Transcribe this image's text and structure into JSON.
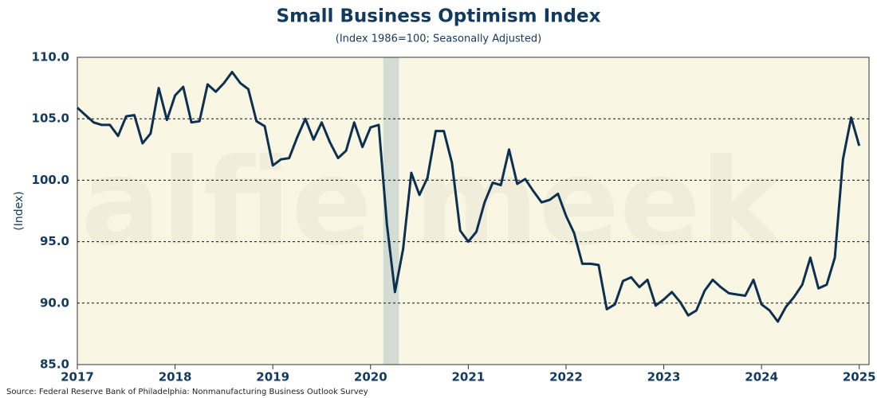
{
  "chart_data": {
    "type": "line",
    "title": "Small Business Optimism Index",
    "subtitle": "(Index 1986=100; Seasonally Adjusted)",
    "y_label": "(Index)",
    "source": "Source: Federal Reserve Bank of Philadelphia: Nonmanufacturing Business Outlook Survey",
    "watermark": "alfie meek",
    "color": "#0d3050",
    "background": "#f9f6e3",
    "shade": [
      2020.13,
      2020.29
    ],
    "shade_color": "#d3dcd4",
    "grid": true,
    "xlim": [
      2017,
      2025.1
    ],
    "xticks": [
      2017,
      2018,
      2019,
      2020,
      2021,
      2022,
      2023,
      2024,
      2025
    ],
    "ylim": [
      85,
      110
    ],
    "yticks": [
      {
        "value": 85,
        "label": "85.0"
      },
      {
        "value": 90,
        "label": "90.0"
      },
      {
        "value": 95,
        "label": "95.0"
      },
      {
        "value": 100,
        "label": "100.0"
      },
      {
        "value": 105,
        "label": "105.0"
      },
      {
        "value": 110,
        "label": "110.0"
      }
    ],
    "x": [
      2017,
      2017.083,
      2017.167,
      2017.25,
      2017.333,
      2017.417,
      2017.5,
      2017.583,
      2017.667,
      2017.75,
      2017.833,
      2017.917,
      2018,
      2018.083,
      2018.167,
      2018.25,
      2018.333,
      2018.417,
      2018.5,
      2018.583,
      2018.667,
      2018.75,
      2018.833,
      2018.917,
      2019,
      2019.083,
      2019.167,
      2019.25,
      2019.333,
      2019.417,
      2019.5,
      2019.583,
      2019.667,
      2019.75,
      2019.833,
      2019.917,
      2020,
      2020.083,
      2020.167,
      2020.25,
      2020.333,
      2020.417,
      2020.5,
      2020.583,
      2020.667,
      2020.75,
      2020.833,
      2020.917,
      2021,
      2021.083,
      2021.167,
      2021.25,
      2021.333,
      2021.417,
      2021.5,
      2021.583,
      2021.667,
      2021.75,
      2021.833,
      2021.917,
      2022,
      2022.083,
      2022.167,
      2022.25,
      2022.333,
      2022.417,
      2022.5,
      2022.583,
      2022.667,
      2022.75,
      2022.833,
      2022.917,
      2023,
      2023.083,
      2023.167,
      2023.25,
      2023.333,
      2023.417,
      2023.5,
      2023.583,
      2023.667,
      2023.75,
      2023.833,
      2023.917,
      2024,
      2024.083,
      2024.167,
      2024.25,
      2024.333,
      2024.417,
      2024.5,
      2024.583,
      2024.667,
      2024.75,
      2024.833,
      2024.917,
      2025
    ],
    "values": [
      105.9,
      105.3,
      104.7,
      104.5,
      104.5,
      103.6,
      105.2,
      105.3,
      103.0,
      103.8,
      107.5,
      104.9,
      106.9,
      107.6,
      104.7,
      104.8,
      107.8,
      107.2,
      107.9,
      108.8,
      107.9,
      107.4,
      104.8,
      104.4,
      101.2,
      101.7,
      101.8,
      103.5,
      105.0,
      103.3,
      104.7,
      103.1,
      101.8,
      102.4,
      104.7,
      102.7,
      104.3,
      104.5,
      96.4,
      90.9,
      94.4,
      100.6,
      98.8,
      100.2,
      104.0,
      104.0,
      101.4,
      95.9,
      95.0,
      95.8,
      98.2,
      99.8,
      99.6,
      102.5,
      99.7,
      100.1,
      99.1,
      98.2,
      98.4,
      98.9,
      97.1,
      95.7,
      93.2,
      93.2,
      93.1,
      89.5,
      89.9,
      91.8,
      92.1,
      91.3,
      91.9,
      89.8,
      90.3,
      90.9,
      90.1,
      89.0,
      89.4,
      91.0,
      91.9,
      91.3,
      90.8,
      90.7,
      90.6,
      91.9,
      89.9,
      89.4,
      88.5,
      89.7,
      90.5,
      91.5,
      93.7,
      91.2,
      91.5,
      93.7,
      101.7,
      105.1,
      102.8
    ]
  }
}
